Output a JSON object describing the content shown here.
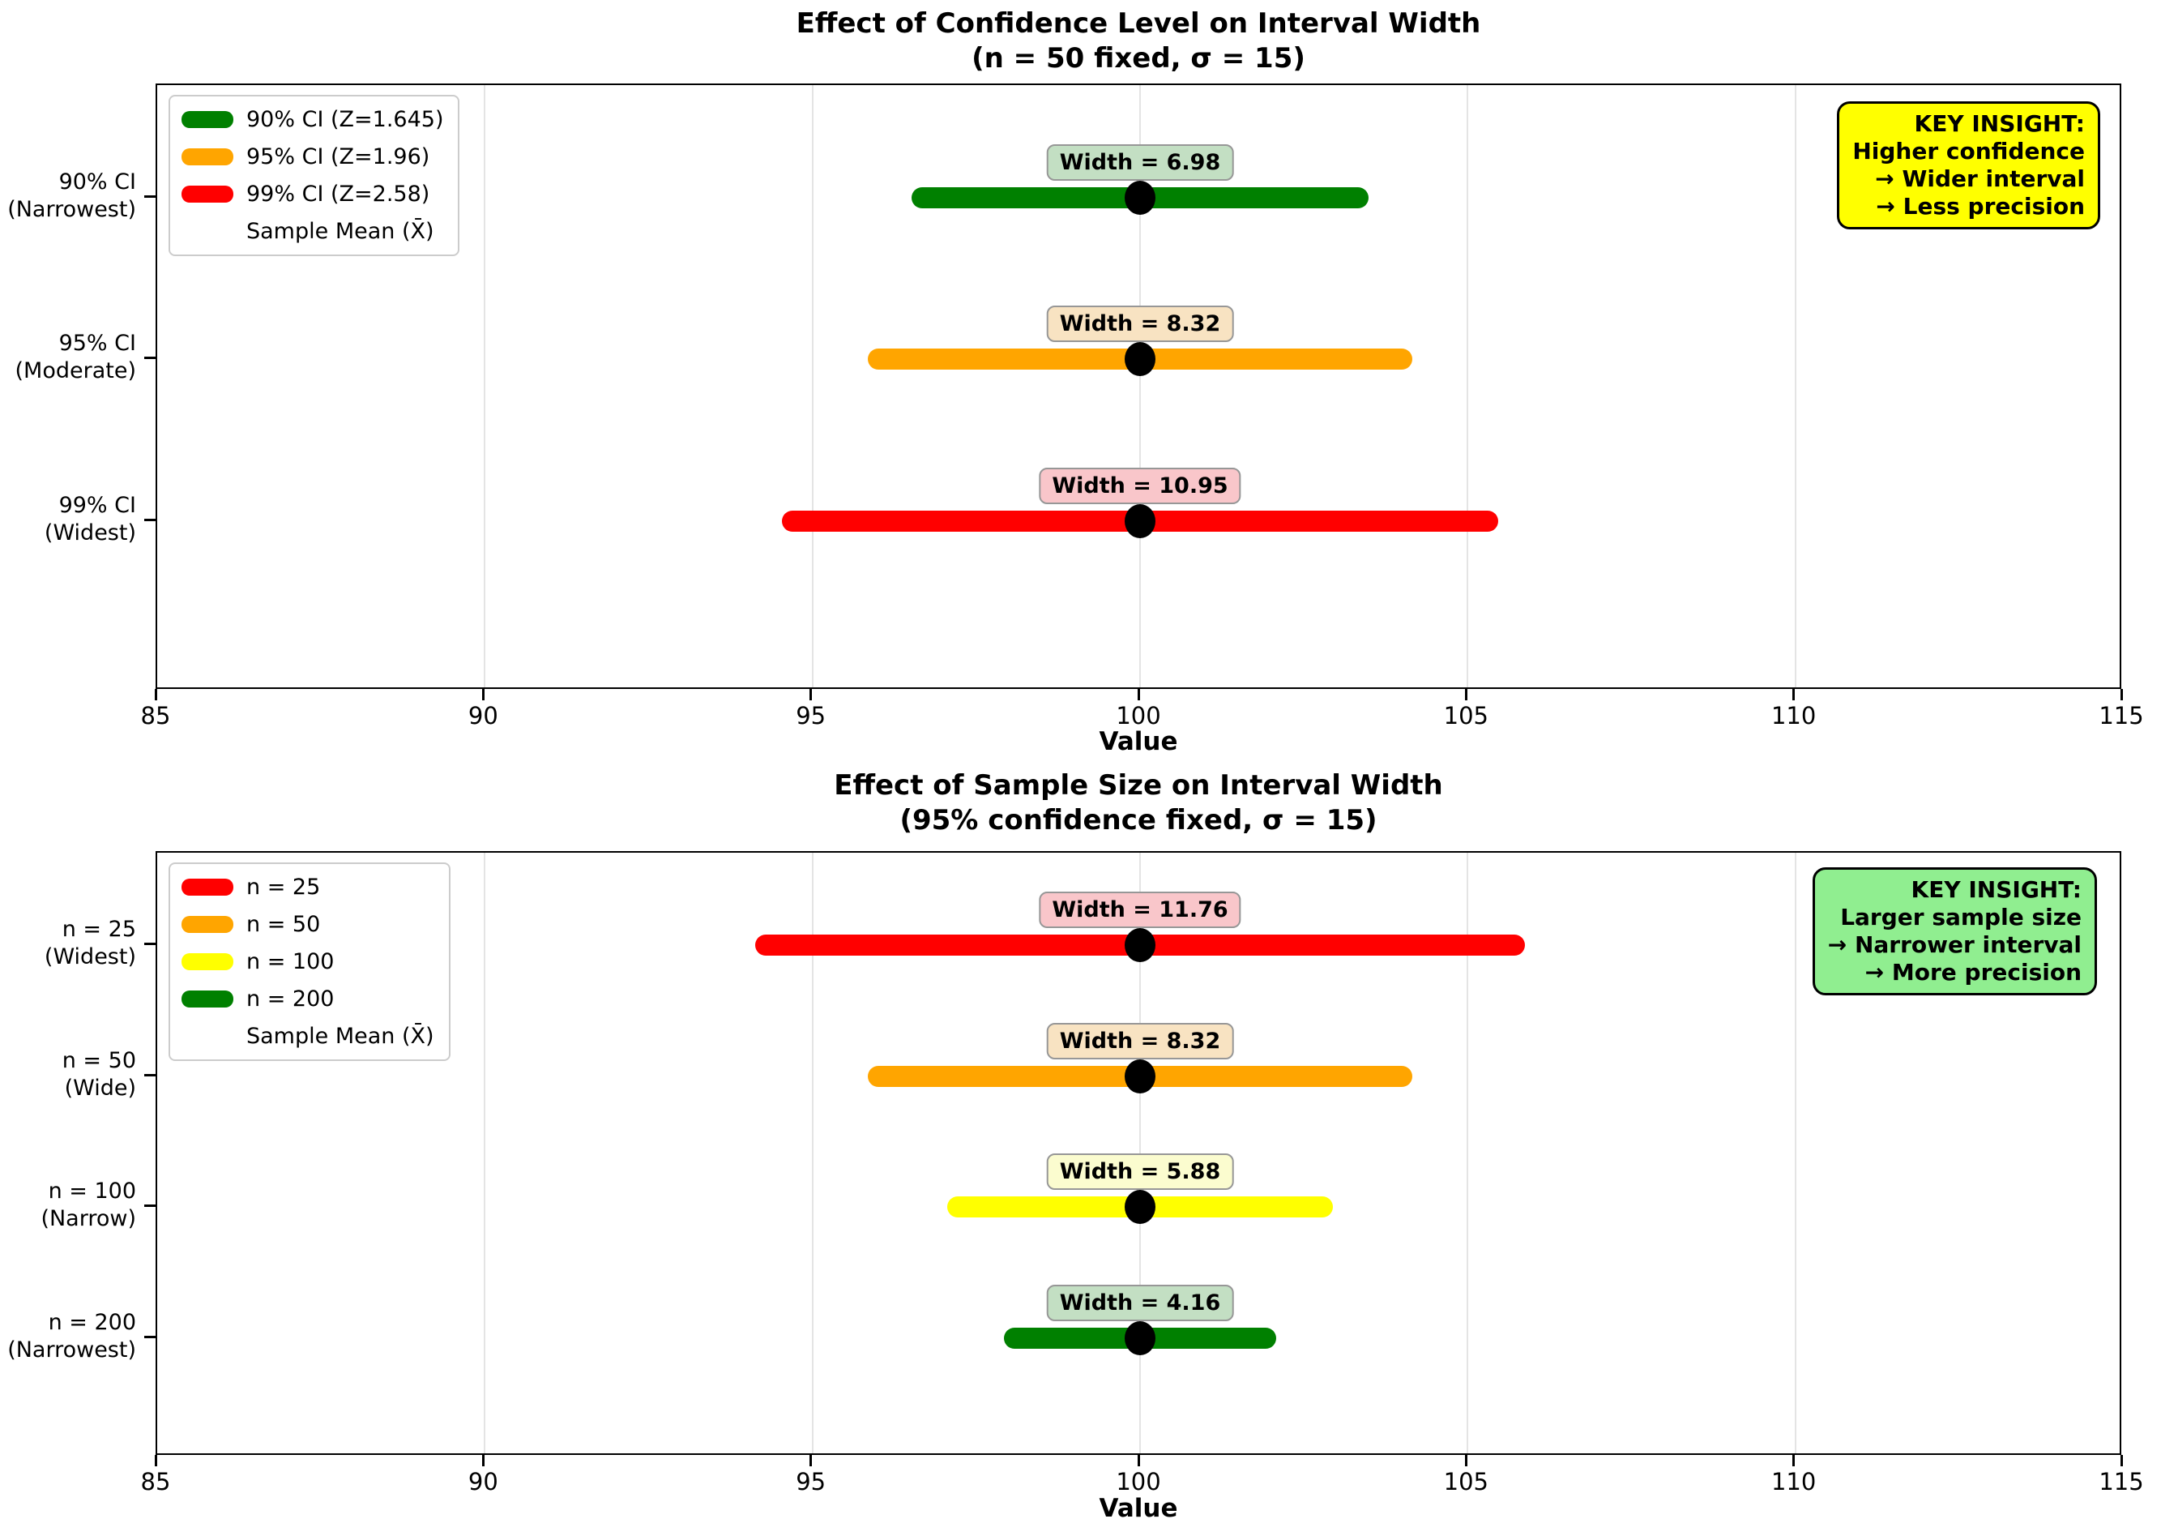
{
  "chart_data": [
    {
      "type": "interval",
      "title": "Effect of Confidence Level on Interval Width",
      "subtitle": "(n = 50 fixed, σ = 15)",
      "xlabel": "Value",
      "xlim": [
        85,
        115
      ],
      "xticks": [
        85,
        90,
        95,
        100,
        105,
        110,
        115
      ],
      "sample_mean": 100,
      "mean_line_color": "#7d7df0",
      "grid": true,
      "legend_position": "upper-left",
      "rows": [
        {
          "label": "90% CI",
          "sublabel": "(Narrowest)",
          "ci_low": 96.51,
          "ci_high": 103.49,
          "width_value": 6.98,
          "width_label": "Width = 6.98",
          "bar_color": "#008000",
          "annotation_bg": "#c3dfc3"
        },
        {
          "label": "95% CI",
          "sublabel": "(Moderate)",
          "ci_low": 95.84,
          "ci_high": 104.16,
          "width_value": 8.32,
          "width_label": "Width = 8.32",
          "bar_color": "#FFA500",
          "annotation_bg": "#f8e3c2"
        },
        {
          "label": "99% CI",
          "sublabel": "(Widest)",
          "ci_low": 94.53,
          "ci_high": 105.47,
          "width_value": 10.95,
          "width_label": "Width = 10.95",
          "bar_color": "#FF0000",
          "annotation_bg": "#f9c6ca"
        }
      ],
      "legend": [
        {
          "label": "90% CI (Z=1.645)",
          "swatch": "bar",
          "color": "#008000"
        },
        {
          "label": "95% CI (Z=1.96)",
          "swatch": "bar",
          "color": "#FFA500"
        },
        {
          "label": "99% CI (Z=2.58)",
          "swatch": "bar",
          "color": "#FF0000"
        },
        {
          "label": "Sample Mean (X̄)",
          "swatch": "dash",
          "color": "#7d7df0"
        }
      ],
      "insight": {
        "bg": "#ffff00",
        "lines": [
          "KEY INSIGHT:",
          "Higher confidence",
          "→ Wider interval",
          "→ Less precision"
        ]
      }
    },
    {
      "type": "interval",
      "title": "Effect of Sample Size on Interval Width",
      "subtitle": "(95% confidence fixed, σ = 15)",
      "xlabel": "Value",
      "xlim": [
        85,
        115
      ],
      "xticks": [
        85,
        90,
        95,
        100,
        105,
        110,
        115
      ],
      "sample_mean": 100,
      "mean_line_color": "#7d7df0",
      "grid": true,
      "legend_position": "upper-left",
      "rows": [
        {
          "label": "n = 25",
          "sublabel": "(Widest)",
          "ci_low": 94.12,
          "ci_high": 105.88,
          "width_value": 11.76,
          "width_label": "Width = 11.76",
          "bar_color": "#FF0000",
          "annotation_bg": "#f9c6ca"
        },
        {
          "label": "n = 50",
          "sublabel": "(Wide)",
          "ci_low": 95.84,
          "ci_high": 104.16,
          "width_value": 8.32,
          "width_label": "Width = 8.32",
          "bar_color": "#FFA500",
          "annotation_bg": "#f8e3c2"
        },
        {
          "label": "n = 100",
          "sublabel": "(Narrow)",
          "ci_low": 97.06,
          "ci_high": 102.94,
          "width_value": 5.88,
          "width_label": "Width = 5.88",
          "bar_color": "#FFFF00",
          "annotation_bg": "#fbfccf"
        },
        {
          "label": "n = 200",
          "sublabel": "(Narrowest)",
          "ci_low": 97.92,
          "ci_high": 102.08,
          "width_value": 4.16,
          "width_label": "Width = 4.16",
          "bar_color": "#008000",
          "annotation_bg": "#c3dfc3"
        }
      ],
      "legend": [
        {
          "label": "n = 25",
          "swatch": "bar",
          "color": "#FF0000"
        },
        {
          "label": "n = 50",
          "swatch": "bar",
          "color": "#FFA500"
        },
        {
          "label": "n = 100",
          "swatch": "bar",
          "color": "#FFFF00"
        },
        {
          "label": "n = 200",
          "swatch": "bar",
          "color": "#008000"
        },
        {
          "label": "Sample Mean (X̄)",
          "swatch": "dash",
          "color": "#7d7df0"
        }
      ],
      "insight": {
        "bg": "#90EE90",
        "lines": [
          "KEY INSIGHT:",
          "Larger sample size",
          "→ Narrower interval",
          "→ More precision"
        ]
      }
    }
  ]
}
